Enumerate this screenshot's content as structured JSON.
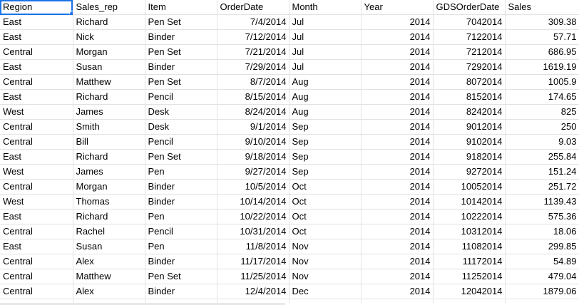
{
  "selection": {
    "color": "#1a73e8"
  },
  "headers": [
    "Region",
    "Sales_rep",
    "Item",
    "OrderDate",
    "Month",
    "Year",
    "GDSOrderDate",
    "Sales"
  ],
  "rows": [
    [
      "East",
      "Richard",
      "Pen Set",
      "7/4/2014",
      "Jul",
      "2014",
      "7042014",
      "309.38"
    ],
    [
      "East",
      "Nick",
      "Binder",
      "7/12/2014",
      "Jul",
      "2014",
      "7122014",
      "57.71"
    ],
    [
      "Central",
      "Morgan",
      "Pen Set",
      "7/21/2014",
      "Jul",
      "2014",
      "7212014",
      "686.95"
    ],
    [
      "East",
      "Susan",
      "Binder",
      "7/29/2014",
      "Jul",
      "2014",
      "7292014",
      "1619.19"
    ],
    [
      "Central",
      "Matthew",
      "Pen Set",
      "8/7/2014",
      "Aug",
      "2014",
      "8072014",
      "1005.9"
    ],
    [
      "East",
      "Richard",
      "Pencil",
      "8/15/2014",
      "Aug",
      "2014",
      "8152014",
      "174.65"
    ],
    [
      "West",
      "James",
      "Desk",
      "8/24/2014",
      "Aug",
      "2014",
      "8242014",
      "825"
    ],
    [
      "Central",
      "Smith",
      "Desk",
      "9/1/2014",
      "Sep",
      "2014",
      "9012014",
      "250"
    ],
    [
      "Central",
      "Bill",
      "Pencil",
      "9/10/2014",
      "Sep",
      "2014",
      "9102014",
      "9.03"
    ],
    [
      "East",
      "Richard",
      "Pen Set",
      "9/18/2014",
      "Sep",
      "2014",
      "9182014",
      "255.84"
    ],
    [
      "West",
      "James",
      "Pen",
      "9/27/2014",
      "Sep",
      "2014",
      "9272014",
      "151.24"
    ],
    [
      "Central",
      "Morgan",
      "Binder",
      "10/5/2014",
      "Oct",
      "2014",
      "10052014",
      "251.72"
    ],
    [
      "West",
      "Thomas",
      "Binder",
      "10/14/2014",
      "Oct",
      "2014",
      "10142014",
      "1139.43"
    ],
    [
      "East",
      "Richard",
      "Pen",
      "10/22/2014",
      "Oct",
      "2014",
      "10222014",
      "575.36"
    ],
    [
      "Central",
      "Rachel",
      "Pencil",
      "10/31/2014",
      "Oct",
      "2014",
      "10312014",
      "18.06"
    ],
    [
      "East",
      "Susan",
      "Pen",
      "11/8/2014",
      "Nov",
      "2014",
      "11082014",
      "299.85"
    ],
    [
      "Central",
      "Alex",
      "Binder",
      "11/17/2014",
      "Nov",
      "2014",
      "11172014",
      "54.89"
    ],
    [
      "Central",
      "Matthew",
      "Pen Set",
      "11/25/2014",
      "Nov",
      "2014",
      "11252014",
      "479.04"
    ],
    [
      "Central",
      "Alex",
      "Binder",
      "12/4/2014",
      "Dec",
      "2014",
      "12042014",
      "1879.06"
    ]
  ]
}
